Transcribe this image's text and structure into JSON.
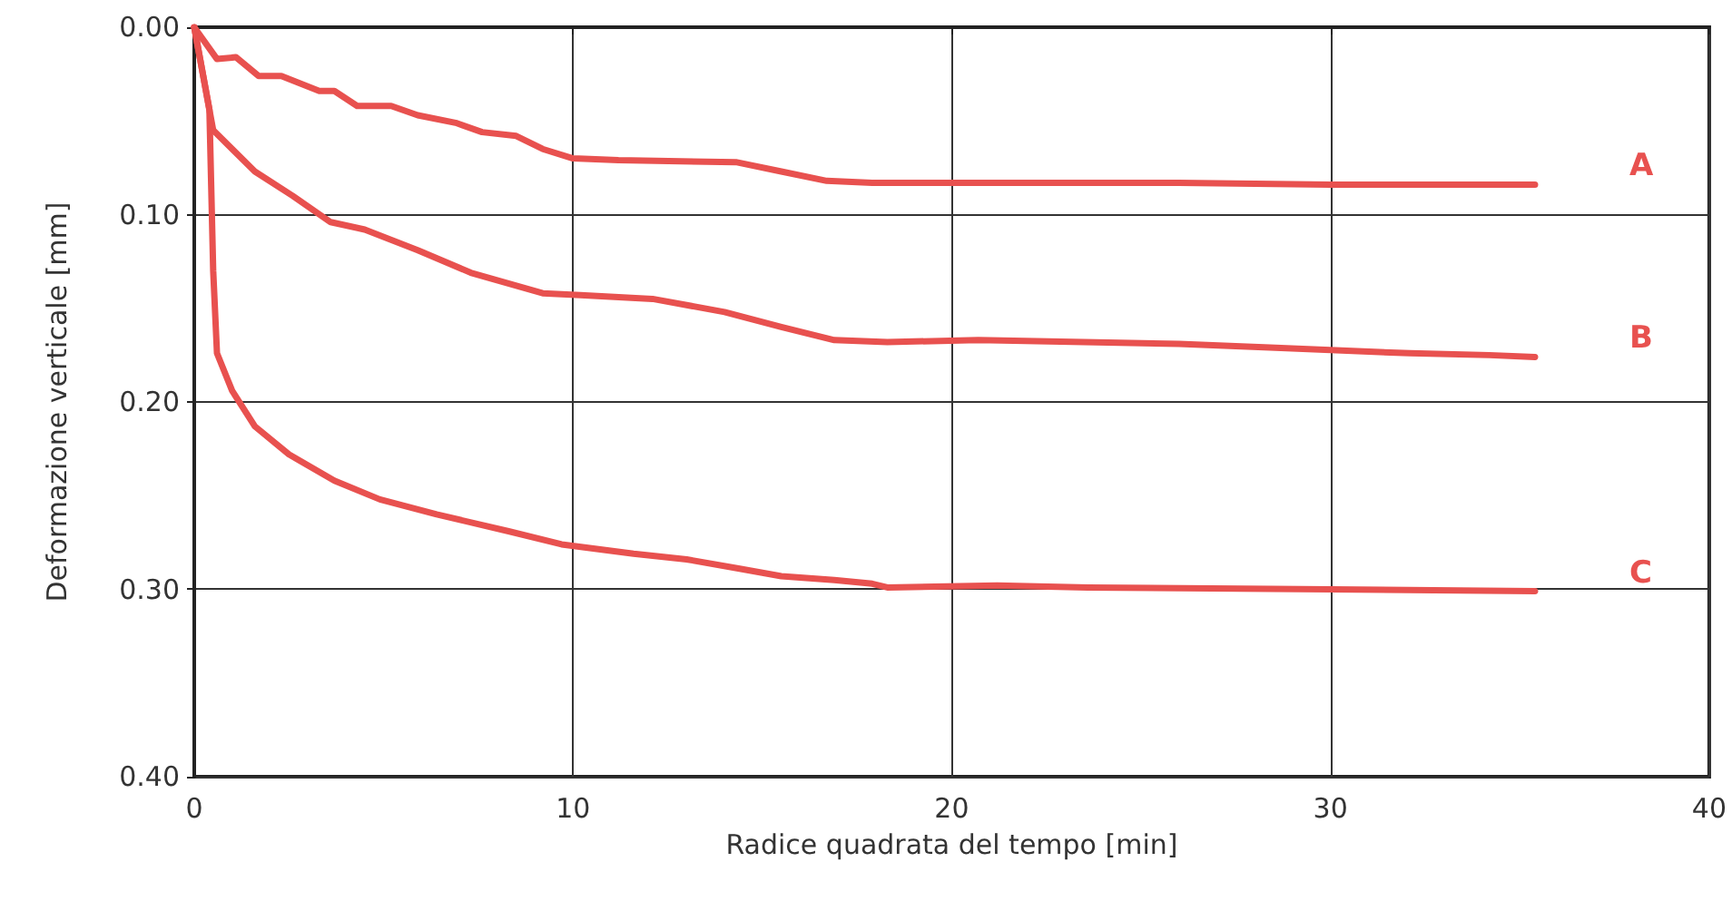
{
  "chart_data": {
    "type": "line",
    "xlabel": "Radice quadrata del tempo [min]",
    "ylabel": "Deformazione verticale [mm]",
    "xlim": [
      0,
      40
    ],
    "xticks": [
      0,
      10,
      20,
      30,
      40
    ],
    "ylim": [
      0.4,
      0.0
    ],
    "yticks": [
      {
        "value": 0.0,
        "label": "0.00"
      },
      {
        "value": 0.1,
        "label": "0.10"
      },
      {
        "value": 0.2,
        "label": "0.20"
      },
      {
        "value": 0.3,
        "label": "0.30"
      },
      {
        "value": 0.4,
        "label": "0.40"
      }
    ],
    "grid": true,
    "legend": false,
    "marker": "none",
    "line_style": "solid",
    "series": [
      {
        "name": "A",
        "color": "#e8514f",
        "x": [
          0,
          0.6,
          1.1,
          1.7,
          2.3,
          3.3,
          3.7,
          4.3,
          5.2,
          5.9,
          6.9,
          7.6,
          8.5,
          9.2,
          10,
          11.2,
          14.3,
          15.5,
          16.7,
          17.9,
          22,
          26,
          30,
          33,
          35.4
        ],
        "values": [
          0,
          0.017,
          0.016,
          0.026,
          0.026,
          0.034,
          0.034,
          0.042,
          0.042,
          0.047,
          0.051,
          0.056,
          0.058,
          0.065,
          0.07,
          0.071,
          0.072,
          0.077,
          0.082,
          0.083,
          0.083,
          0.083,
          0.084,
          0.084,
          0.084
        ]
      },
      {
        "name": "B",
        "color": "#e8514f",
        "x": [
          0,
          0.5,
          1.6,
          2.6,
          3.6,
          4.5,
          5.9,
          7.3,
          9.2,
          10.2,
          12.1,
          14,
          15.5,
          16.9,
          18.3,
          20.7,
          26,
          28.4,
          32.1,
          34.2,
          35.4
        ],
        "values": [
          0,
          0.055,
          0.077,
          0.09,
          0.104,
          0.108,
          0.119,
          0.131,
          0.142,
          0.143,
          0.145,
          0.152,
          0.16,
          0.167,
          0.168,
          0.167,
          0.169,
          0.171,
          0.174,
          0.175,
          0.176
        ]
      },
      {
        "name": "C",
        "color": "#e8514f",
        "x": [
          0,
          0.4,
          0.5,
          0.6,
          1,
          1.6,
          2.5,
          3.7,
          4.9,
          6.4,
          8.3,
          9.7,
          11.6,
          13,
          14.4,
          15.5,
          16.9,
          17.9,
          18.3,
          21.2,
          23.6,
          30,
          35.4
        ],
        "values": [
          0,
          0.044,
          0.13,
          0.174,
          0.194,
          0.213,
          0.228,
          0.242,
          0.252,
          0.26,
          0.269,
          0.276,
          0.281,
          0.284,
          0.289,
          0.293,
          0.295,
          0.297,
          0.299,
          0.298,
          0.299,
          0.3,
          0.301
        ]
      }
    ]
  }
}
